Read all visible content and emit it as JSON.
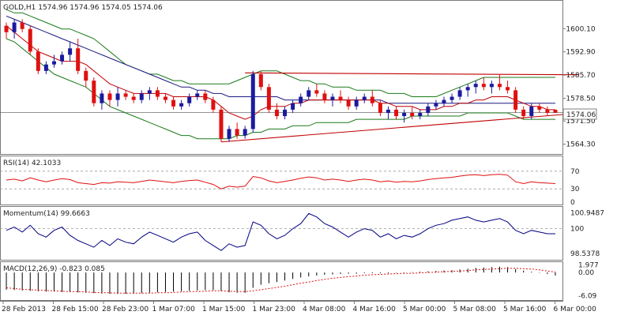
{
  "header": {
    "symbol_text": "GOLD,H1  1574.96 1574.96 1574.05 1574.06"
  },
  "price_badge": "1574.06",
  "x_labels": [
    "28 Feb 2013",
    "28 Feb 15:00",
    "28 Feb 23:00",
    "1 Mar 07:00",
    "1 Mar 15:00",
    "1 Mar 23:00",
    "4 Mar 08:00",
    "4 Mar 16:00",
    "5 Mar 00:00",
    "5 Mar 08:00",
    "5 Mar 16:00",
    "6 Mar 00:00"
  ],
  "colors": {
    "bull": "#1a1aa0",
    "bear": "#e01010",
    "ma_fast": "#c00000",
    "ma_slow": "#1a1a80",
    "band": "#1a7a1a",
    "trend": "#c00000",
    "indicator": "#000080",
    "grid": "#9a9a9a"
  },
  "chart_data": [
    {
      "type": "candlestick",
      "title": "GOLD,H1",
      "ylim": [
        1562,
        1608
      ],
      "y_ticks": [
        1600.1,
        1592.9,
        1585.7,
        1578.5,
        1571.5,
        1564.3
      ],
      "y_tick_labels": [
        "1600.10",
        "1592.90",
        "1585.70",
        "1578.50",
        "1571.50",
        "1564.30"
      ],
      "last_price": 1574.06,
      "candles": [
        [
          1601,
          1602,
          1597,
          1599
        ],
        [
          1599,
          1603,
          1597,
          1602
        ],
        [
          1602,
          1603,
          1599,
          1600
        ],
        [
          1600,
          1601,
          1592,
          1593
        ],
        [
          1593,
          1594,
          1586,
          1587
        ],
        [
          1587,
          1590,
          1586,
          1589
        ],
        [
          1589,
          1592,
          1588,
          1590
        ],
        [
          1590,
          1593,
          1589,
          1592
        ],
        [
          1592,
          1596,
          1590,
          1594
        ],
        [
          1594,
          1597,
          1586,
          1587
        ],
        [
          1587,
          1588,
          1582,
          1584
        ],
        [
          1584,
          1585,
          1576,
          1577
        ],
        [
          1577,
          1581,
          1575,
          1580
        ],
        [
          1580,
          1581,
          1576,
          1578
        ],
        [
          1578,
          1582,
          1576,
          1580
        ],
        [
          1580,
          1581,
          1578,
          1579
        ],
        [
          1579,
          1580,
          1577,
          1578
        ],
        [
          1578,
          1581,
          1577,
          1580
        ],
        [
          1580,
          1582,
          1578,
          1581
        ],
        [
          1581,
          1582,
          1578,
          1579
        ],
        [
          1579,
          1580,
          1577,
          1578
        ],
        [
          1578,
          1579,
          1575,
          1576
        ],
        [
          1576,
          1578,
          1575,
          1577
        ],
        [
          1577,
          1580,
          1576,
          1579
        ],
        [
          1579,
          1581,
          1578,
          1580
        ],
        [
          1580,
          1581,
          1577,
          1578
        ],
        [
          1578,
          1579,
          1574,
          1575
        ],
        [
          1575,
          1576,
          1565,
          1566
        ],
        [
          1566,
          1570,
          1565,
          1569
        ],
        [
          1569,
          1571,
          1566,
          1567
        ],
        [
          1567,
          1570,
          1566,
          1569
        ],
        [
          1569,
          1587,
          1568,
          1586
        ],
        [
          1586,
          1587,
          1581,
          1582
        ],
        [
          1582,
          1583,
          1574,
          1575
        ],
        [
          1575,
          1577,
          1572,
          1573
        ],
        [
          1573,
          1576,
          1572,
          1575
        ],
        [
          1575,
          1578,
          1574,
          1577
        ],
        [
          1577,
          1580,
          1576,
          1579
        ],
        [
          1579,
          1582,
          1578,
          1581
        ],
        [
          1581,
          1583,
          1579,
          1580
        ],
        [
          1580,
          1581,
          1577,
          1578
        ],
        [
          1578,
          1580,
          1576,
          1579
        ],
        [
          1579,
          1581,
          1577,
          1578
        ],
        [
          1578,
          1579,
          1575,
          1576
        ],
        [
          1576,
          1579,
          1575,
          1578
        ],
        [
          1578,
          1580,
          1577,
          1579
        ],
        [
          1579,
          1581,
          1576,
          1577
        ],
        [
          1577,
          1578,
          1573,
          1574
        ],
        [
          1574,
          1576,
          1572,
          1575
        ],
        [
          1575,
          1576,
          1572,
          1573
        ],
        [
          1573,
          1575,
          1571,
          1574
        ],
        [
          1574,
          1576,
          1572,
          1573
        ],
        [
          1573,
          1575,
          1572,
          1574
        ],
        [
          1574,
          1577,
          1573,
          1576
        ],
        [
          1576,
          1578,
          1575,
          1577
        ],
        [
          1577,
          1579,
          1576,
          1578
        ],
        [
          1578,
          1580,
          1577,
          1579
        ],
        [
          1579,
          1582,
          1578,
          1581
        ],
        [
          1581,
          1583,
          1579,
          1582
        ],
        [
          1582,
          1584,
          1580,
          1583
        ],
        [
          1583,
          1585,
          1581,
          1582
        ],
        [
          1582,
          1584,
          1580,
          1583
        ],
        [
          1583,
          1586,
          1581,
          1582
        ],
        [
          1582,
          1584,
          1580,
          1581
        ],
        [
          1581,
          1582,
          1574,
          1575
        ],
        [
          1575,
          1576,
          1572,
          1573
        ],
        [
          1573,
          1577,
          1572,
          1576
        ],
        [
          1576,
          1577,
          1574,
          1575
        ],
        [
          1575,
          1576,
          1573,
          1574
        ],
        [
          1574.96,
          1574.96,
          1574.05,
          1574.06
        ]
      ],
      "ma_fast": [
        1601,
        1599,
        1597,
        1595,
        1593,
        1592,
        1591,
        1590,
        1590,
        1590,
        1589,
        1587,
        1585,
        1583,
        1582,
        1581,
        1580,
        1580,
        1580,
        1580,
        1580,
        1579,
        1579,
        1579,
        1579,
        1579,
        1578,
        1576,
        1574,
        1573,
        1572,
        1573,
        1575,
        1576,
        1576,
        1576,
        1577,
        1577,
        1578,
        1578,
        1578,
        1578,
        1578,
        1578,
        1578,
        1578,
        1578,
        1577,
        1577,
        1576,
        1576,
        1576,
        1575,
        1575,
        1575,
        1576,
        1576,
        1577,
        1577,
        1578,
        1578,
        1579,
        1579,
        1579,
        1578,
        1577,
        1576,
        1576,
        1575,
        1575
      ],
      "ma_slow": [
        1604,
        1603,
        1602,
        1601,
        1600,
        1599,
        1598,
        1597,
        1596,
        1595,
        1594,
        1593,
        1592,
        1591,
        1590,
        1589,
        1588,
        1587,
        1586,
        1585,
        1584,
        1583,
        1582,
        1582,
        1581,
        1581,
        1580,
        1580,
        1579,
        1579,
        1579,
        1579,
        1579,
        1579,
        1579,
        1578,
        1578,
        1578,
        1578,
        1578,
        1578,
        1578,
        1578,
        1578,
        1578,
        1578,
        1578,
        1578,
        1577,
        1577,
        1577,
        1577,
        1577,
        1577,
        1577,
        1577,
        1577,
        1577,
        1577,
        1577,
        1577,
        1577,
        1577,
        1577,
        1577,
        1577,
        1577,
        1577,
        1577,
        1577
      ],
      "band_upper": [
        1606,
        1605,
        1605,
        1604,
        1603,
        1602,
        1601,
        1600,
        1600,
        1599,
        1598,
        1597,
        1595,
        1593,
        1591,
        1589,
        1588,
        1587,
        1586,
        1586,
        1585,
        1584,
        1584,
        1583,
        1583,
        1583,
        1583,
        1583,
        1583,
        1584,
        1585,
        1586,
        1587,
        1587,
        1587,
        1586,
        1585,
        1584,
        1584,
        1583,
        1583,
        1582,
        1582,
        1582,
        1581,
        1581,
        1581,
        1581,
        1580,
        1580,
        1580,
        1579,
        1579,
        1579,
        1579,
        1580,
        1581,
        1582,
        1583,
        1584,
        1585,
        1585,
        1585,
        1585,
        1585,
        1585,
        1585,
        1585,
        1585,
        1585
      ],
      "band_lower": [
        1597,
        1596,
        1594,
        1592,
        1590,
        1588,
        1586,
        1585,
        1584,
        1583,
        1582,
        1580,
        1578,
        1576,
        1575,
        1574,
        1573,
        1572,
        1571,
        1570,
        1569,
        1568,
        1567,
        1567,
        1566,
        1566,
        1566,
        1566,
        1566,
        1567,
        1567,
        1568,
        1568,
        1569,
        1569,
        1569,
        1570,
        1570,
        1570,
        1571,
        1571,
        1571,
        1571,
        1571,
        1572,
        1572,
        1572,
        1572,
        1572,
        1572,
        1572,
        1573,
        1573,
        1573,
        1573,
        1573,
        1573,
        1573,
        1574,
        1574,
        1574,
        1574,
        1574,
        1574,
        1573,
        1572,
        1572,
        1572,
        1572,
        1572
      ],
      "trend_lines": [
        {
          "from": [
            27,
            1565
          ],
          "to": [
            70,
            1573.5
          ]
        },
        {
          "from": [
            30,
            1586.4
          ],
          "to": [
            72,
            1585.8
          ]
        }
      ]
    },
    {
      "type": "line",
      "title": "RSI(14) 42.1033",
      "ylim": [
        0,
        100
      ],
      "y_ticks": [
        70,
        30,
        0
      ],
      "y_tick_labels": [
        "70",
        "30",
        "0"
      ],
      "values": [
        50,
        52,
        48,
        55,
        50,
        46,
        50,
        53,
        51,
        44,
        42,
        40,
        44,
        43,
        46,
        45,
        44,
        47,
        50,
        48,
        46,
        44,
        47,
        49,
        50,
        45,
        40,
        30,
        36,
        34,
        36,
        58,
        55,
        48,
        44,
        47,
        50,
        54,
        57,
        55,
        50,
        52,
        50,
        47,
        50,
        52,
        50,
        46,
        48,
        45,
        47,
        46,
        48,
        51,
        53,
        55,
        56,
        59,
        61,
        62,
        60,
        62,
        63,
        61,
        46,
        42,
        46,
        44,
        43,
        42
      ]
    },
    {
      "type": "line",
      "title": "Momentum(14) 99.6663",
      "ylim": [
        98.2,
        101.2
      ],
      "y_ticks": [
        100.9487,
        100,
        98.5378
      ],
      "y_tick_labels": [
        "100.9487",
        "100",
        "98.5378"
      ],
      "values": [
        99.9,
        100.1,
        99.8,
        100.2,
        99.7,
        99.5,
        99.9,
        100.1,
        99.6,
        99.3,
        99.1,
        98.9,
        99.3,
        99.0,
        99.4,
        99.2,
        99.1,
        99.5,
        99.8,
        99.6,
        99.4,
        99.2,
        99.5,
        99.7,
        99.8,
        99.3,
        99.0,
        98.7,
        99.1,
        98.9,
        99.0,
        100.4,
        100.2,
        99.7,
        99.4,
        99.6,
        100.0,
        100.3,
        100.9,
        100.7,
        100.3,
        100.1,
        99.8,
        99.5,
        99.8,
        100.0,
        99.9,
        99.5,
        99.7,
        99.4,
        99.6,
        99.5,
        99.7,
        100.0,
        100.2,
        100.3,
        100.5,
        100.6,
        100.7,
        100.5,
        100.4,
        100.5,
        100.6,
        100.4,
        99.9,
        99.7,
        99.9,
        99.8,
        99.7,
        99.7
      ]
    },
    {
      "type": "bar",
      "title": "MACD(12,26,9) -0.823 0.085",
      "ylim": [
        -7,
        2.5
      ],
      "y_ticks": [
        1.977,
        0.0,
        -6.09
      ],
      "y_tick_labels": [
        "1.977",
        "0.00",
        "-6.09"
      ],
      "values": [
        -4.5,
        -4.6,
        -4.7,
        -4.8,
        -4.9,
        -5.0,
        -5.0,
        -5.1,
        -5.1,
        -5.2,
        -5.3,
        -5.4,
        -5.5,
        -5.6,
        -5.6,
        -5.6,
        -5.5,
        -5.4,
        -5.3,
        -5.2,
        -5.1,
        -5.0,
        -4.9,
        -4.8,
        -4.7,
        -4.6,
        -4.6,
        -4.9,
        -5.2,
        -5.3,
        -5.3,
        -4.0,
        -3.2,
        -2.8,
        -2.5,
        -2.1,
        -1.7,
        -1.3,
        -1.0,
        -0.8,
        -0.6,
        -0.5,
        -0.4,
        -0.3,
        -0.3,
        -0.2,
        -0.2,
        -0.2,
        -0.2,
        -0.1,
        -0.1,
        0.1,
        0.2,
        0.3,
        0.4,
        0.5,
        0.6,
        0.8,
        1.0,
        1.2,
        1.3,
        1.4,
        1.5,
        1.4,
        0.9,
        0.5,
        0.2,
        -0.1,
        -0.4,
        -0.8
      ],
      "signal": [
        -4.0,
        -4.2,
        -4.4,
        -4.5,
        -4.6,
        -4.7,
        -4.8,
        -4.9,
        -5.0,
        -5.0,
        -5.1,
        -5.2,
        -5.3,
        -5.3,
        -5.4,
        -5.4,
        -5.4,
        -5.4,
        -5.4,
        -5.3,
        -5.3,
        -5.2,
        -5.1,
        -5.0,
        -5.0,
        -4.9,
        -4.8,
        -4.8,
        -4.9,
        -5.0,
        -5.0,
        -4.8,
        -4.5,
        -4.2,
        -3.9,
        -3.6,
        -3.2,
        -2.8,
        -2.5,
        -2.1,
        -1.8,
        -1.5,
        -1.3,
        -1.1,
        -0.9,
        -0.7,
        -0.6,
        -0.5,
        -0.4,
        -0.3,
        -0.2,
        -0.2,
        -0.1,
        0.0,
        0.1,
        0.2,
        0.3,
        0.4,
        0.5,
        0.7,
        0.8,
        0.9,
        1.0,
        1.1,
        1.1,
        1.0,
        0.9,
        0.7,
        0.4,
        0.1
      ]
    }
  ]
}
